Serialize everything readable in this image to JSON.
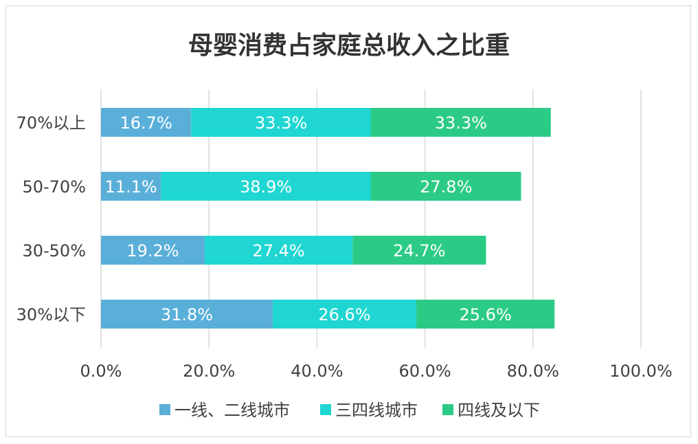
{
  "chart_data": {
    "type": "bar",
    "orientation": "horizontal",
    "stacked": true,
    "title": "母婴消费占家庭总收入之比重",
    "categories": [
      "70%以上",
      "50-70%",
      "30-50%",
      "30%以下"
    ],
    "series": [
      {
        "name": "一线、二线城市",
        "color": "#5aafd9",
        "values": [
          16.7,
          11.1,
          19.2,
          31.8
        ],
        "labels": [
          "16.7%",
          "11.1%",
          "19.2%",
          "31.8%"
        ]
      },
      {
        "name": "三四线城市",
        "color": "#1fd6d2",
        "values": [
          33.3,
          38.9,
          27.4,
          26.6
        ],
        "labels": [
          "33.3%",
          "38.9%",
          "27.4%",
          "26.6%"
        ]
      },
      {
        "name": "四线及以下",
        "color": "#2ccb85",
        "values": [
          33.3,
          27.8,
          24.7,
          25.6
        ],
        "labels": [
          "33.3%",
          "27.8%",
          "24.7%",
          "25.6%"
        ]
      }
    ],
    "xlim": [
      0,
      100
    ],
    "xticks": [
      0,
      20,
      40,
      60,
      80,
      100
    ],
    "xtick_labels": [
      "0.0%",
      "20.0%",
      "40.0%",
      "60.0%",
      "80.0%",
      "100.0%"
    ],
    "grid": true,
    "legend_position": "bottom"
  }
}
